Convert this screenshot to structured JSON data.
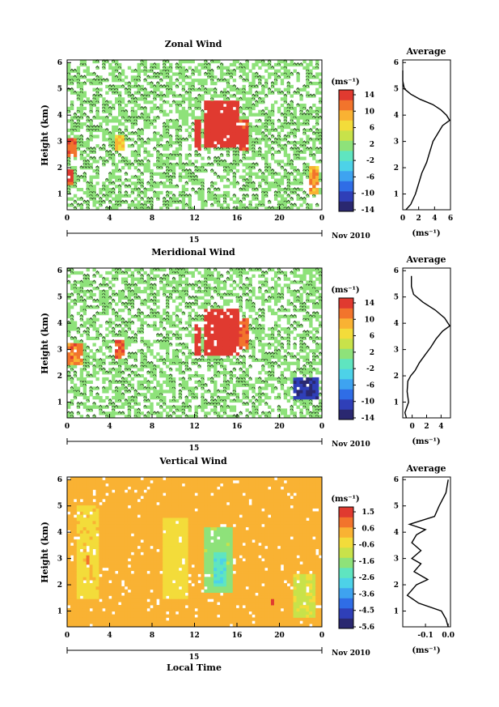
{
  "chart_data": [
    {
      "type": "heatmap",
      "title": "Zonal Wind",
      "ylabel": "Height (km)",
      "xticks": [
        "0",
        "4",
        "8",
        "12",
        "16",
        "20",
        "0"
      ],
      "yticks": [
        "1",
        "2",
        "3",
        "4",
        "5",
        "6"
      ],
      "date_day": "15",
      "date_month": "Nov 2010",
      "colorbar": {
        "unit": "(ms⁻¹)",
        "ticks": [
          "14",
          "10",
          "6",
          "2",
          "-2",
          "-6",
          "-10",
          "-14"
        ],
        "range": [
          -15,
          15
        ]
      },
      "regions": [
        {
          "t0": 0,
          "t1": 1.0,
          "h0": 2.4,
          "h1": 3.1,
          "v": 12
        },
        {
          "t0": 0,
          "t1": 0.6,
          "h0": 1.4,
          "h1": 2.0,
          "v": 13
        },
        {
          "t0": 4.5,
          "t1": 5.3,
          "h0": 2.6,
          "h1": 3.2,
          "v": 8
        },
        {
          "t0": 12.0,
          "t1": 12.6,
          "h0": 2.6,
          "h1": 3.9,
          "v": 15
        },
        {
          "t0": 12.8,
          "t1": 16.3,
          "h0": 2.8,
          "h1": 4.5,
          "v": 15
        },
        {
          "t0": 16.3,
          "t1": 17.2,
          "h0": 2.6,
          "h1": 3.9,
          "v": 13
        },
        {
          "t0": 22.8,
          "t1": 23.8,
          "h0": 1.0,
          "h1": 2.1,
          "v": 9
        }
      ],
      "average": {
        "title": "Average",
        "xlabel": "(ms⁻¹)",
        "xticks": [
          "0",
          "2",
          "4",
          "6"
        ],
        "xlim": [
          0,
          6
        ],
        "h": [
          0.3,
          0.6,
          1.0,
          1.4,
          1.8,
          2.2,
          2.6,
          3.0,
          3.3,
          3.6,
          3.8,
          4.0,
          4.2,
          4.4,
          4.6,
          4.8,
          5.0,
          5.3,
          5.7
        ],
        "v": [
          0.4,
          1.0,
          1.6,
          2.0,
          2.4,
          3.0,
          3.4,
          3.8,
          4.4,
          5.0,
          5.9,
          5.5,
          4.8,
          3.8,
          2.2,
          1.0,
          0.2,
          0.0,
          0.0
        ]
      }
    },
    {
      "type": "heatmap",
      "title": "Meridional Wind",
      "ylabel": "Height (km)",
      "xticks": [
        "0",
        "4",
        "8",
        "12",
        "16",
        "20",
        "0"
      ],
      "yticks": [
        "1",
        "2",
        "3",
        "4",
        "5",
        "6"
      ],
      "date_day": "15",
      "date_month": "Nov 2010",
      "colorbar": {
        "unit": "(ms⁻¹)",
        "ticks": [
          "14",
          "10",
          "6",
          "2",
          "-2",
          "-6",
          "-10",
          "-14"
        ],
        "range": [
          -15,
          15
        ]
      },
      "regions": [
        {
          "t0": 0,
          "t1": 1.5,
          "h0": 2.4,
          "h1": 3.2,
          "v": 11
        },
        {
          "t0": 4.5,
          "t1": 5.3,
          "h0": 2.6,
          "h1": 3.4,
          "v": 12
        },
        {
          "t0": 12.0,
          "t1": 12.6,
          "h0": 2.8,
          "h1": 4.0,
          "v": 14
        },
        {
          "t0": 12.8,
          "t1": 16.3,
          "h0": 2.8,
          "h1": 4.5,
          "v": 15
        },
        {
          "t0": 16.3,
          "t1": 17.2,
          "h0": 3.0,
          "h1": 4.2,
          "v": 12
        },
        {
          "t0": 21.3,
          "t1": 23.7,
          "h0": 1.1,
          "h1": 2.0,
          "v": -12
        }
      ],
      "average": {
        "title": "Average",
        "xlabel": "(ms⁻¹)",
        "xticks": [
          "0",
          "2",
          "4"
        ],
        "xlim": [
          -1.3,
          5.3
        ],
        "h": [
          0.3,
          0.6,
          1.0,
          1.4,
          1.8,
          2.0,
          2.2,
          2.5,
          2.8,
          3.1,
          3.4,
          3.7,
          3.9,
          4.2,
          4.5,
          4.8,
          5.1,
          5.4,
          5.8
        ],
        "v": [
          -0.8,
          -1.0,
          -0.5,
          -0.7,
          -0.6,
          -0.2,
          0.4,
          1.0,
          1.8,
          2.6,
          3.3,
          4.2,
          5.2,
          4.5,
          3.2,
          1.5,
          0.2,
          -0.1,
          -0.1
        ]
      }
    },
    {
      "type": "heatmap",
      "title": "Vertical Wind",
      "ylabel": "Height (km)",
      "xlabel": "Local Time",
      "xticks": [
        "0",
        "4",
        "8",
        "12",
        "16",
        "20",
        "0"
      ],
      "yticks": [
        "1",
        "2",
        "3",
        "4",
        "5",
        "6"
      ],
      "date_day": "15",
      "date_month": "Nov 2010",
      "colorbar": {
        "unit": "(ms⁻¹)",
        "ticks": [
          "1.5",
          "0.6",
          "-0.6",
          "-1.6",
          "-2.6",
          "-3.6",
          "-4.5",
          "-5.6"
        ],
        "range": [
          -6,
          2
        ]
      },
      "regions": [
        {
          "t0": 1.0,
          "t1": 3.0,
          "h0": 1.5,
          "h1": 5.0,
          "v": -0.2
        },
        {
          "t0": 9.0,
          "t1": 11.5,
          "h0": 1.5,
          "h1": 4.5,
          "v": -0.3
        },
        {
          "t0": 13.0,
          "t1": 15.5,
          "h0": 1.7,
          "h1": 4.2,
          "v": -1.6
        },
        {
          "t0": 13.7,
          "t1": 15.0,
          "h0": 1.9,
          "h1": 3.3,
          "v": -2.6
        },
        {
          "t0": 21.3,
          "t1": 23.3,
          "h0": 0.8,
          "h1": 2.4,
          "v": -0.8
        },
        {
          "t0": 19.3,
          "t1": 19.6,
          "h0": 1.2,
          "h1": 1.5,
          "v": 1.5
        },
        {
          "t0": 1.7,
          "t1": 2.0,
          "h0": 2.8,
          "h1": 3.1,
          "v": 1.3
        }
      ],
      "average": {
        "title": "Average",
        "xlabel": "(ms⁻¹)",
        "xticks": [
          "-0.1",
          "0.0"
        ],
        "xlim": [
          -0.2,
          0.01
        ],
        "h": [
          0.3,
          0.7,
          1.0,
          1.3,
          1.6,
          2.0,
          2.2,
          2.5,
          2.8,
          3.0,
          3.3,
          3.6,
          3.9,
          4.1,
          4.3,
          4.6,
          5.0,
          5.5,
          6.0
        ],
        "v": [
          0.0,
          -0.01,
          -0.03,
          -0.13,
          -0.18,
          -0.14,
          -0.09,
          -0.15,
          -0.12,
          -0.16,
          -0.12,
          -0.16,
          -0.14,
          -0.1,
          -0.17,
          -0.06,
          -0.04,
          -0.01,
          0.0
        ]
      }
    }
  ]
}
